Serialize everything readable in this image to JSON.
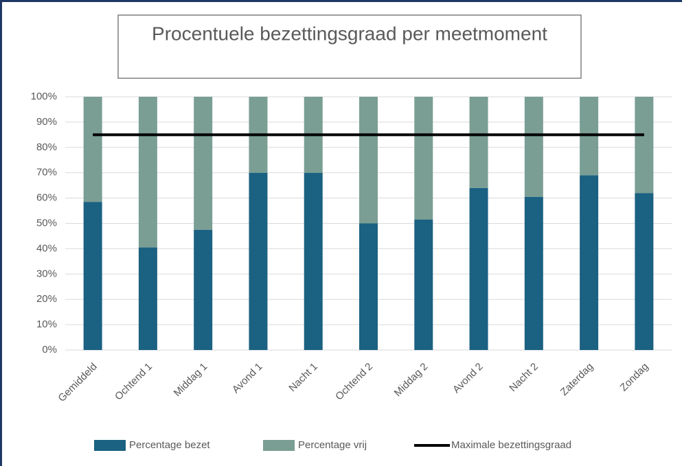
{
  "chart_data": {
    "type": "bar",
    "stacked": true,
    "title": "Procentuele bezettingsgraad per meetmoment",
    "categories": [
      "Gemiddeld",
      "Ochtend 1",
      "Middag 1",
      "Avond 1",
      "Nacht 1",
      "Ochtend 2",
      "Middag 2",
      "Avond 2",
      "Nacht 2",
      "Zaterdag",
      "Zondag"
    ],
    "series": [
      {
        "name": "Percentage bezet",
        "type": "bar",
        "color": "#1b6182",
        "values": [
          58.5,
          40.5,
          47.5,
          70,
          70,
          50,
          51.5,
          64,
          60.5,
          69,
          62
        ]
      },
      {
        "name": "Percentage vrij",
        "type": "bar",
        "color": "#7a9e94",
        "values": [
          41.5,
          59.5,
          52.5,
          30,
          30,
          50,
          48.5,
          36,
          39.5,
          31,
          38
        ]
      },
      {
        "name": "Maximale bezettingsgraad",
        "type": "line",
        "color": "#000000",
        "values": [
          85,
          85,
          85,
          85,
          85,
          85,
          85,
          85,
          85,
          85,
          85
        ]
      }
    ],
    "ylim": [
      0,
      100
    ],
    "yticks": [
      {
        "value": 0,
        "label": "0%"
      },
      {
        "value": 10,
        "label": "10%"
      },
      {
        "value": 20,
        "label": "20%"
      },
      {
        "value": 30,
        "label": "30%"
      },
      {
        "value": 40,
        "label": "40%"
      },
      {
        "value": 50,
        "label": "50%"
      },
      {
        "value": 60,
        "label": "60%"
      },
      {
        "value": 70,
        "label": "70%"
      },
      {
        "value": 80,
        "label": "80%"
      },
      {
        "value": 90,
        "label": "90%"
      },
      {
        "value": 100,
        "label": "100%"
      }
    ],
    "grid": true,
    "legend": "bottom"
  }
}
